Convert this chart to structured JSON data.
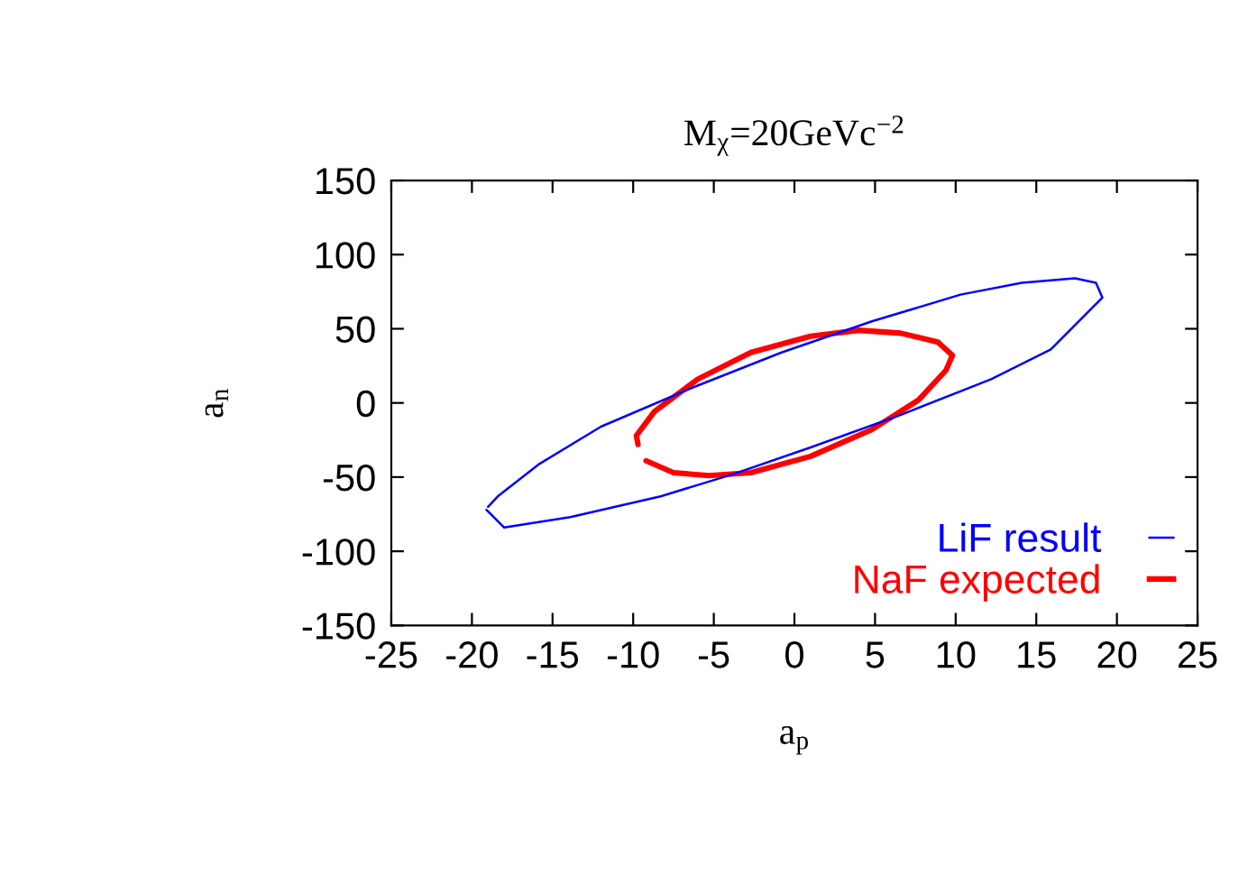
{
  "chart_data": {
    "type": "line",
    "title": "M$_{χ}$=20GeVc$^{−2}$",
    "xlabel": "a$_{p}$",
    "ylabel": "a$_{n}$",
    "xlim": [
      -25,
      25
    ],
    "xticks": [
      -25,
      -20,
      -15,
      -10,
      -5,
      0,
      5,
      10,
      15,
      20,
      25
    ],
    "ylim": [
      -150,
      150
    ],
    "yticks": [
      -150,
      -100,
      -50,
      0,
      50,
      100,
      150
    ],
    "legend": "bottom right",
    "grid": false,
    "marker": "none",
    "line_style": "solid",
    "series": [
      {
        "name": "LiF result",
        "color": "#0000ff",
        "x": [
          -19.1,
          -18.0,
          -13.9,
          -8.3,
          -3.8,
          1.0,
          6.6,
          12.2,
          15.9,
          19.1,
          18.7,
          17.4,
          14.1,
          10.3,
          4.8,
          -0.8,
          -6.4,
          -12.0,
          -15.8,
          -18.4,
          -19.0
        ],
        "values": [
          -72,
          -84,
          -77,
          -63,
          -48,
          -30,
          -8,
          16,
          36,
          71,
          81,
          84,
          81,
          73,
          55,
          34,
          10,
          -16,
          -41,
          -63,
          -70
        ]
      },
      {
        "name": "NaF expected",
        "color": "#ff0000",
        "x": [
          -9.7,
          -9.8,
          -8.7,
          -6.0,
          -2.7,
          1.0,
          4.0,
          6.6,
          8.9,
          9.8,
          9.4,
          7.7,
          4.8,
          1.0,
          -2.7,
          -5.3,
          -7.5,
          -9.2
        ],
        "values": [
          -28,
          -22,
          -6,
          16,
          34,
          45,
          49,
          47,
          41,
          32,
          22,
          2,
          -18,
          -36,
          -47,
          -49,
          -47,
          -39
        ]
      }
    ]
  }
}
